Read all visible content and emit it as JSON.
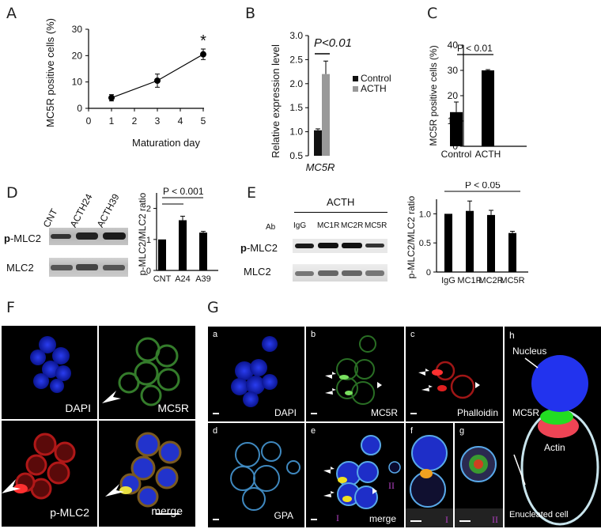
{
  "panels": {
    "A": "A",
    "B": "B",
    "C": "C",
    "D": "D",
    "E": "E",
    "F": "F",
    "G": "G"
  },
  "chart_data": [
    {
      "id": "A",
      "type": "line",
      "x": [
        1,
        3,
        5
      ],
      "values": [
        4.0,
        10.5,
        20.5
      ],
      "errors": [
        1.2,
        2.5,
        2.0
      ],
      "xlabel": "Maturation day",
      "ylabel": "MC5R positive cells (%)",
      "xticks": [
        "0",
        "1",
        "2",
        "3",
        "4",
        "5"
      ],
      "yticks": [
        "0",
        "10",
        "20",
        "30"
      ],
      "xlim": [
        0,
        5
      ],
      "ylim": [
        0,
        30
      ],
      "annotation": "*"
    },
    {
      "id": "B",
      "type": "bar",
      "categories": [
        "MC5R"
      ],
      "series": [
        {
          "name": "Control",
          "values": [
            1.03
          ],
          "errors": [
            0.03
          ],
          "color": "#111111"
        },
        {
          "name": "ACTH",
          "values": [
            2.2
          ],
          "errors": [
            0.27
          ],
          "color": "#999999"
        }
      ],
      "ylabel": "Relative expression level",
      "yticks": [
        "0.5",
        "1.0",
        "1.5",
        "2.0",
        "2.5",
        "3.0"
      ],
      "ylim": [
        0.5,
        3.0
      ],
      "sig": "P<0.01",
      "xlabel": "MC5R"
    },
    {
      "id": "C",
      "type": "bar",
      "categories": [
        "Control",
        "ACTH"
      ],
      "values": [
        13.5,
        30.0
      ],
      "errors": [
        4.0,
        0.3
      ],
      "ylabel": "MC5R positive cells (%)",
      "yticks": [
        "0",
        "10",
        "20",
        "30",
        "40"
      ],
      "ylim": [
        0,
        40
      ],
      "sig": "P < 0.01"
    },
    {
      "id": "D",
      "type": "bar",
      "categories": [
        "CNT",
        "A24",
        "A39"
      ],
      "values": [
        1.0,
        1.62,
        1.22
      ],
      "errors": [
        0.0,
        0.13,
        0.04
      ],
      "ylabel": "p-MLC2/MLC2 ratio",
      "yticks": [
        "0",
        "1",
        "2"
      ],
      "ylim": [
        0,
        2.5
      ],
      "sig": "P < 0.001"
    },
    {
      "id": "E",
      "type": "bar",
      "categories": [
        "IgG",
        "MC1R",
        "MC2R",
        "MC5R"
      ],
      "values": [
        1.0,
        1.05,
        0.98,
        0.67
      ],
      "errors": [
        0.0,
        0.17,
        0.08,
        0.03
      ],
      "ylabel": "p-MLC2/MLC2 ratio",
      "yticks": [
        "0",
        "0.5",
        "1.0"
      ],
      "ylim": [
        0,
        1.25
      ],
      "sig": "P < 0.05"
    }
  ],
  "blotD": {
    "lanes": [
      "CNT",
      "ACTH24",
      "ACTH39"
    ],
    "row1": "p-MLC2",
    "row1_bold": "p",
    "row1_rest": "-MLC2",
    "row2": "MLC2"
  },
  "blotE": {
    "header": "ACTH",
    "ab": "Ab",
    "lanes": [
      "IgG",
      "MC1R",
      "MC2R",
      "MC5R"
    ],
    "row1_bold": "p",
    "row1_rest": "-MLC2",
    "row2": "MLC2"
  },
  "F": {
    "dapi": "DAPI",
    "mc5r": "MC5R",
    "pmlc2": "p-MLC2",
    "merge": "merge"
  },
  "G": {
    "a": "a",
    "b": "b",
    "c": "c",
    "d": "d",
    "e": "e",
    "f": "f",
    "g": "g",
    "h": "h",
    "dapi": "DAPI",
    "mc5r": "MC5R",
    "phalloidin": "Phalloidin",
    "gpa": "GPA",
    "merge": "merge",
    "I": "I",
    "II": "II"
  },
  "diagram": {
    "nucleus": "Nucleus",
    "mc5r": "MC5R",
    "actin": "Actin",
    "cell": "Enucleated cell"
  }
}
